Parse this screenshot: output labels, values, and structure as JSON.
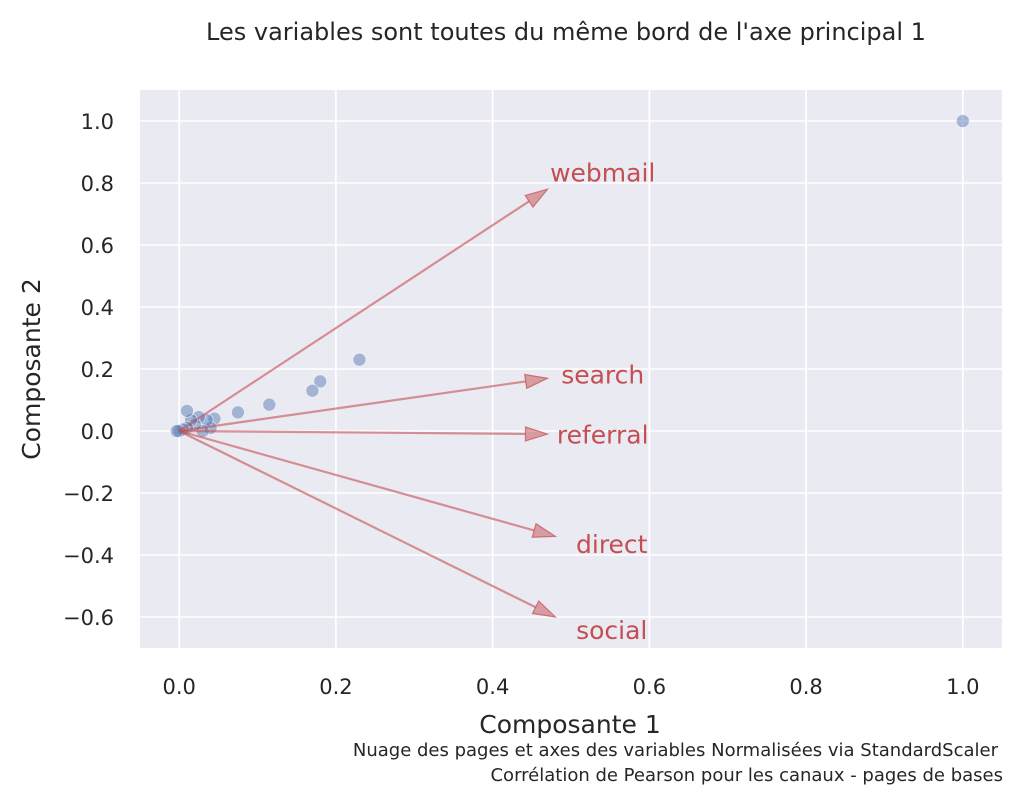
{
  "chart_data": {
    "type": "scatter",
    "title": "Les variables sont toutes du même bord de l'axe principal 1",
    "xlabel": "Composante 1",
    "ylabel": "Composante 2",
    "xlim": [
      -0.05,
      1.05
    ],
    "ylim": [
      -0.7,
      1.1
    ],
    "xticks": [
      0.0,
      0.2,
      0.4,
      0.6,
      0.8,
      1.0
    ],
    "xtick_labels": [
      "0.0",
      "0.2",
      "0.4",
      "0.6",
      "0.8",
      "1.0"
    ],
    "yticks": [
      1.0,
      0.8,
      0.6,
      0.4,
      0.2,
      0.0,
      -0.2,
      -0.4,
      -0.6
    ],
    "ytick_labels": [
      "1.0",
      "0.8",
      "0.6",
      "0.4",
      "0.2",
      "0.0",
      "−0.2",
      "−0.4",
      "−0.6"
    ],
    "grid": true,
    "points": [
      {
        "x": 1.0,
        "y": 1.0
      },
      {
        "x": 0.23,
        "y": 0.23
      },
      {
        "x": 0.18,
        "y": 0.16
      },
      {
        "x": 0.17,
        "y": 0.13
      },
      {
        "x": 0.115,
        "y": 0.085
      },
      {
        "x": 0.075,
        "y": 0.06
      },
      {
        "x": 0.045,
        "y": 0.04
      },
      {
        "x": 0.04,
        "y": 0.01
      },
      {
        "x": 0.035,
        "y": 0.035
      },
      {
        "x": 0.03,
        "y": 0.0
      },
      {
        "x": 0.025,
        "y": 0.045
      },
      {
        "x": 0.02,
        "y": 0.02
      },
      {
        "x": 0.015,
        "y": 0.035
      },
      {
        "x": 0.01,
        "y": 0.065
      },
      {
        "x": 0.01,
        "y": 0.01
      },
      {
        "x": 0.005,
        "y": 0.005
      },
      {
        "x": 0.0,
        "y": 0.0
      },
      {
        "x": -0.003,
        "y": 0.0
      }
    ],
    "arrows": [
      {
        "label": "webmail",
        "x": 0.47,
        "y": 0.78
      },
      {
        "label": "search",
        "x": 0.47,
        "y": 0.17
      },
      {
        "label": "referral",
        "x": 0.47,
        "y": -0.01
      },
      {
        "label": "direct",
        "x": 0.48,
        "y": -0.34
      },
      {
        "label": "social",
        "x": 0.48,
        "y": -0.6
      }
    ],
    "colors": {
      "background": "#eaeaf2",
      "grid": "#ffffff",
      "points": "#4c72b0",
      "arrows": "#c44e52"
    },
    "caption": [
      "Nuage des pages et axes des variables Normalisées via StandardScaler",
      "Corrélation de Pearson pour les canaux - pages de bases"
    ]
  }
}
